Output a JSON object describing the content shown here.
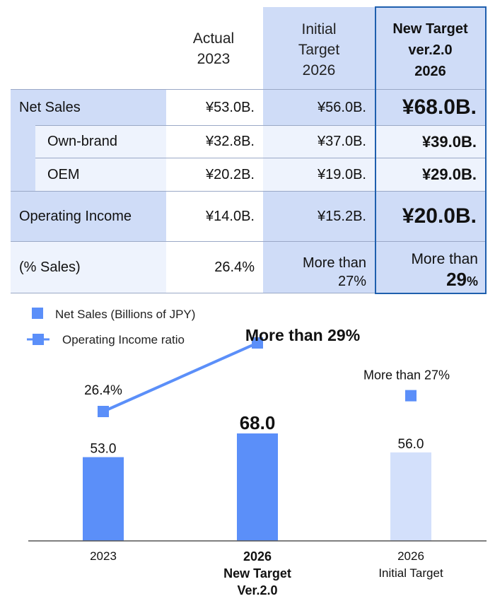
{
  "table": {
    "columns": {
      "actual": {
        "line1": "Actual",
        "line2": "2023"
      },
      "initial": {
        "line1": "Initial",
        "line2": "Target",
        "line3": "2026"
      },
      "new_target": {
        "line1": "New Target",
        "line2": "ver.2.0",
        "line3": "2026"
      }
    },
    "rows": [
      {
        "label": "Net Sales",
        "actual": "¥53.0B.",
        "initial": "¥56.0B.",
        "new_target": "¥68.0B."
      },
      {
        "label": "Own-brand",
        "actual": "¥32.8B.",
        "initial": "¥37.0B.",
        "new_target": "¥39.0B."
      },
      {
        "label": "OEM",
        "actual": "¥20.2B.",
        "initial": "¥19.0B.",
        "new_target": "¥29.0B."
      },
      {
        "label": "Operating Income",
        "actual": "¥14.0B.",
        "initial": "¥15.2B.",
        "new_target": "¥20.0B."
      },
      {
        "label": "(% Sales)",
        "actual": "26.4%",
        "initial_line1": "More than",
        "initial_line2": "27%",
        "new_target_line1": "More than",
        "new_target_num": "29",
        "new_target_unit": "%"
      }
    ]
  },
  "colors": {
    "bar": "#5b8ff9",
    "bar_light": "#d3e0fb",
    "line": "#5b8ff9",
    "table_header": "#cfdcf7",
    "table_light": "#eef3fd",
    "highlight_border": "#1f5fae"
  },
  "chart_data": {
    "type": "bar",
    "legend": [
      {
        "name": "Net Sales (Billions of JPY)",
        "marker": "square"
      },
      {
        "name": "Operating Income ratio",
        "marker": "line-square"
      }
    ],
    "legend_position": "top-left",
    "categories": [
      {
        "line1": "2023",
        "line2": "",
        "line3": "",
        "bold": false
      },
      {
        "line1": "2026",
        "line2": "New Target",
        "line3": "Ver.2.0",
        "bold": true
      },
      {
        "line1": "2026",
        "line2": "Initial Target",
        "line3": "",
        "bold": false
      }
    ],
    "series": [
      {
        "name": "Net Sales (Billions of JPY)",
        "values": [
          53.0,
          68.0,
          56.0
        ],
        "labels": [
          "53.0",
          "68.0",
          "56.0"
        ]
      },
      {
        "name": "Operating Income ratio",
        "values": [
          26.4,
          29,
          27
        ],
        "labels": [
          "26.4%",
          "More than 29%",
          "More than 27%"
        ],
        "connected": [
          true,
          true,
          false
        ]
      }
    ],
    "ylim": [
      0,
      80
    ],
    "grid": false,
    "xlabel": "",
    "ylabel": ""
  }
}
